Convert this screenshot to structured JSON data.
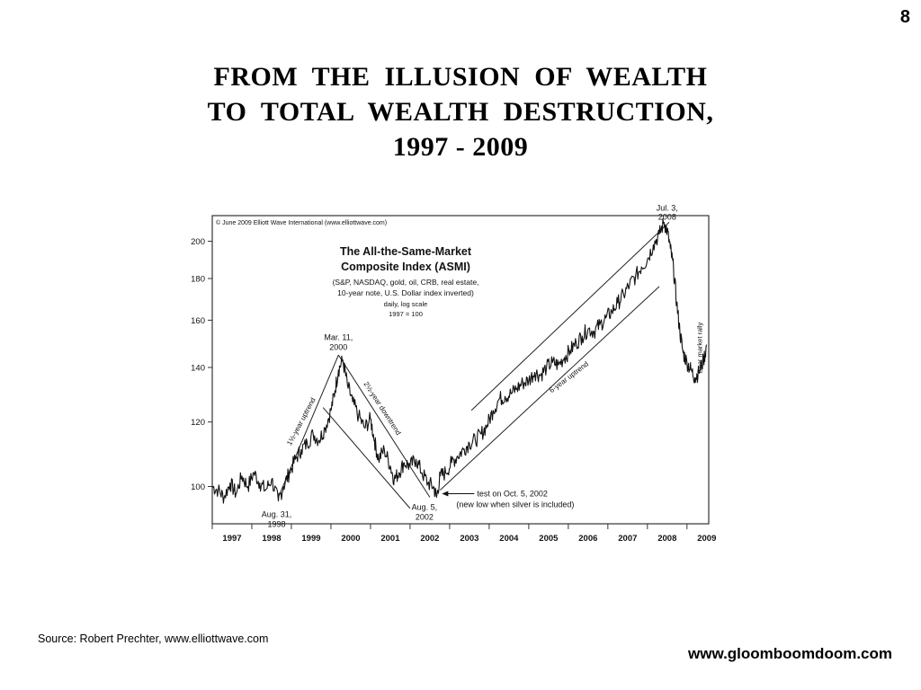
{
  "page_number": "8",
  "slide_title": [
    "FROM  THE  ILLUSION  OF  WEALTH",
    "TO  TOTAL  WEALTH  DESTRUCTION,",
    "1997 - 2009"
  ],
  "source": "Source: Robert Prechter, www.elliottwave.com",
  "website": "www.gloomboomdoom.com",
  "chart_data": {
    "type": "line",
    "copyright": "© June 2009 Elliott Wave International (www.elliottwave.com)",
    "title": "The All-the-Same-Market",
    "subtitle": "Composite Index (ASMI)",
    "description": [
      "(S&P, NASDAQ, gold, oil, CRB, real estate,",
      "10-year note, U.S. Dollar index inverted)",
      "daily, log scale",
      "1997 = 100"
    ],
    "y_scale": "log",
    "ylim": [
      90,
      215
    ],
    "xlim": [
      1997.0,
      2009.55
    ],
    "y_ticks": [
      100,
      120,
      140,
      160,
      180,
      200
    ],
    "x_tick_labels": [
      "1997",
      "1998",
      "1999",
      "2000",
      "2001",
      "2002",
      "2003",
      "2004",
      "2005",
      "2006",
      "2007",
      "2008",
      "2009"
    ],
    "grid": false,
    "series": [
      {
        "x": [
          1997.0,
          1997.15,
          1997.3,
          1997.45,
          1997.6,
          1997.75,
          1997.9,
          1998.05,
          1998.2,
          1998.35,
          1998.5,
          1998.67,
          1998.8,
          1998.95,
          1999.1,
          1999.25,
          1999.4,
          1999.55,
          1999.7,
          1999.85,
          2000.0,
          2000.1,
          2000.19,
          2000.3,
          2000.42,
          2000.55,
          2000.7,
          2000.85,
          2001.0,
          2001.1,
          2001.2,
          2001.35,
          2001.5,
          2001.6,
          2001.72,
          2001.85,
          2002.0,
          2002.15,
          2002.3,
          2002.45,
          2002.59,
          2002.67,
          2002.76,
          2002.9,
          2003.05,
          2003.2,
          2003.35,
          2003.5,
          2003.65,
          2003.8,
          2003.95,
          2004.1,
          2004.25,
          2004.4,
          2004.55,
          2004.7,
          2004.85,
          2005.0,
          2005.15,
          2005.3,
          2005.45,
          2005.6,
          2005.75,
          2005.9,
          2006.05,
          2006.2,
          2006.35,
          2006.5,
          2006.65,
          2006.8,
          2006.95,
          2007.1,
          2007.25,
          2007.4,
          2007.55,
          2007.7,
          2007.85,
          2008.0,
          2008.15,
          2008.3,
          2008.42,
          2008.5,
          2008.58,
          2008.66,
          2008.74,
          2008.82,
          2008.9,
          2009.0,
          2009.1,
          2009.2,
          2009.3,
          2009.42,
          2009.5
        ],
        "y": [
          100,
          99,
          97,
          101,
          98,
          103,
          100,
          104,
          101,
          99,
          102,
          96,
          100,
          104,
          108,
          111,
          113,
          116,
          114,
          118,
          124,
          131,
          139,
          143,
          133,
          127,
          122,
          118,
          121,
          114,
          108,
          111,
          106,
          102,
          104,
          107,
          106,
          108,
          104,
          101,
          100,
          97,
          103,
          104,
          107,
          109,
          111,
          113,
          114,
          116,
          119,
          124,
          128,
          129,
          130,
          132,
          134,
          135,
          138,
          137,
          140,
          142,
          141,
          144,
          147,
          150,
          153,
          156,
          155,
          158,
          161,
          164,
          168,
          172,
          177,
          181,
          186,
          190,
          198,
          204,
          211,
          206,
          196,
          185,
          168,
          155,
          146,
          142,
          139,
          136,
          138,
          143,
          149
        ]
      }
    ],
    "annotations": [
      {
        "text": [
          "Mar. 11,",
          "2000"
        ],
        "x": 2000.19,
        "y": 143
      },
      {
        "text": [
          "Aug. 31,",
          "1998"
        ],
        "x": 1998.67,
        "y": 96
      },
      {
        "text": [
          "Aug. 5,",
          "2002"
        ],
        "x": 2002.59,
        "y": 97
      },
      {
        "text": [
          "Jul. 3,",
          "2008"
        ],
        "x": 2008.5,
        "y": 211
      },
      {
        "text": [
          "test on Oct. 5, 2002",
          "(new low when silver is included)"
        ],
        "x": 2002.76,
        "y": 99
      }
    ],
    "trend_labels": [
      "1½-year uptrend",
      "2½-year downtrend",
      "6-year uptrend",
      "Bear market rally"
    ]
  }
}
